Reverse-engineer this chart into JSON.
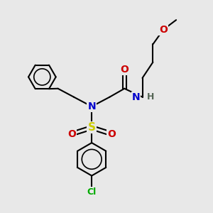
{
  "bg_color": "#e8e8e8",
  "atom_colors": {
    "N": "#0000cc",
    "O": "#cc0000",
    "S": "#cccc00",
    "Cl": "#00aa00",
    "H": "#556655",
    "C": "#000000"
  },
  "bond_color": "#000000",
  "bond_width": 1.5,
  "fig_w": 3.0,
  "fig_h": 3.0,
  "dpi": 100,
  "xlim": [
    0,
    10
  ],
  "ylim": [
    0,
    10
  ]
}
